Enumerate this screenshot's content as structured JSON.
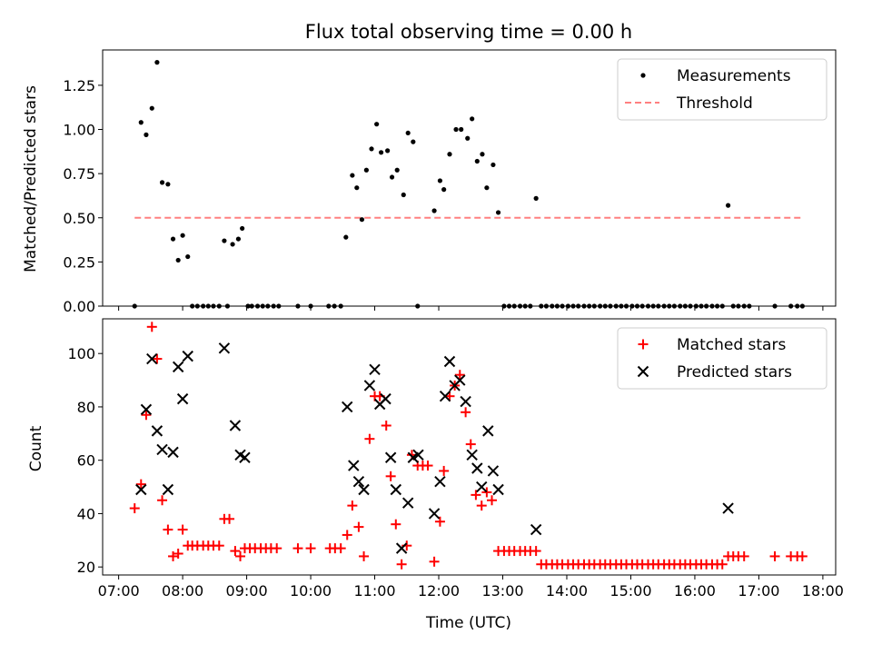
{
  "figure": {
    "title": "Flux total observing time = 0.00 h",
    "xlabel": "Time (UTC)"
  },
  "chart_data": [
    {
      "type": "scatter",
      "panel": "top",
      "ylabel": "Matched/Predicted stars",
      "xlim_hours": [
        6.75,
        18.2
      ],
      "ylim": [
        0,
        1.45
      ],
      "yticks": [
        0.0,
        0.25,
        0.5,
        0.75,
        1.0,
        1.25
      ],
      "ytick_labels": [
        "0.00",
        "0.25",
        "0.50",
        "0.75",
        "1.00",
        "1.25"
      ],
      "legend_position": "upper right",
      "series": [
        {
          "name": "Measurements",
          "color": "#000000",
          "x": [
            7.25,
            7.35,
            7.43,
            7.52,
            7.6,
            7.68,
            7.77,
            7.85,
            7.93,
            8.0,
            8.08,
            8.15,
            8.23,
            8.32,
            8.4,
            8.48,
            8.57,
            8.65,
            8.7,
            8.78,
            8.87,
            8.93,
            9.02,
            9.08,
            9.17,
            9.25,
            9.33,
            9.42,
            9.5,
            9.8,
            10.0,
            10.28,
            10.37,
            10.47,
            10.55,
            10.65,
            10.72,
            10.8,
            10.87,
            10.95,
            11.03,
            11.1,
            11.2,
            11.27,
            11.35,
            11.45,
            11.52,
            11.6,
            11.67,
            11.93,
            12.02,
            12.08,
            12.17,
            12.27,
            12.35,
            12.45,
            12.52,
            12.6,
            12.68,
            12.75,
            12.85,
            12.93,
            13.02,
            13.1,
            13.18,
            13.27,
            13.35,
            13.43,
            13.52,
            13.6,
            13.68,
            13.77,
            13.85,
            13.93,
            14.02,
            14.1,
            14.18,
            14.27,
            14.35,
            14.43,
            14.52,
            14.6,
            14.68,
            14.77,
            14.85,
            14.93,
            15.02,
            15.1,
            15.18,
            15.27,
            15.35,
            15.43,
            15.52,
            15.6,
            15.68,
            15.77,
            15.85,
            15.93,
            16.02,
            16.1,
            16.18,
            16.27,
            16.35,
            16.43,
            16.52,
            16.6,
            16.68,
            16.77,
            16.85,
            17.25,
            17.5,
            17.6,
            17.68
          ],
          "y": [
            0.0,
            1.04,
            0.97,
            1.12,
            1.38,
            0.7,
            0.69,
            0.38,
            0.26,
            0.4,
            0.28,
            0.0,
            0.0,
            0.0,
            0.0,
            0.0,
            0.0,
            0.37,
            0.0,
            0.35,
            0.38,
            0.44,
            0.0,
            0.0,
            0.0,
            0.0,
            0.0,
            0.0,
            0.0,
            0.0,
            0.0,
            0.0,
            0.0,
            0.0,
            0.39,
            0.74,
            0.67,
            0.49,
            0.77,
            0.89,
            1.03,
            0.87,
            0.88,
            0.73,
            0.77,
            0.63,
            0.98,
            0.93,
            0.0,
            0.54,
            0.71,
            0.66,
            0.86,
            1.0,
            1.0,
            0.95,
            1.06,
            0.82,
            0.86,
            0.67,
            0.8,
            0.53,
            0.0,
            0.0,
            0.0,
            0.0,
            0.0,
            0.0,
            0.61,
            0.0,
            0.0,
            0.0,
            0.0,
            0.0,
            0.0,
            0.0,
            0.0,
            0.0,
            0.0,
            0.0,
            0.0,
            0.0,
            0.0,
            0.0,
            0.0,
            0.0,
            0.0,
            0.0,
            0.0,
            0.0,
            0.0,
            0.0,
            0.0,
            0.0,
            0.0,
            0.0,
            0.0,
            0.0,
            0.0,
            0.0,
            0.0,
            0.0,
            0.0,
            0.0,
            0.57,
            0.0,
            0.0,
            0.0,
            0.0,
            0.0,
            0.0,
            0.0,
            0.0
          ]
        },
        {
          "name": "Threshold",
          "style": "dashed",
          "color": "#ff8080",
          "x": [
            7.25,
            17.68
          ],
          "y": [
            0.5,
            0.5
          ]
        }
      ]
    },
    {
      "type": "scatter",
      "panel": "bottom",
      "ylabel": "Count",
      "xlabel": "Time (UTC)",
      "xlim_hours": [
        6.75,
        18.2
      ],
      "ylim": [
        17,
        113
      ],
      "yticks": [
        20,
        40,
        60,
        80,
        100
      ],
      "xticks_hours": [
        7,
        8,
        9,
        10,
        11,
        12,
        13,
        14,
        15,
        16,
        17,
        18
      ],
      "xtick_labels": [
        "07:00",
        "08:00",
        "09:00",
        "10:00",
        "11:00",
        "12:00",
        "13:00",
        "14:00",
        "15:00",
        "16:00",
        "17:00",
        "18:00"
      ],
      "legend_position": "upper right",
      "series": [
        {
          "name": "Matched stars",
          "marker": "plus",
          "color": "#ff0000",
          "x": [
            7.25,
            7.35,
            7.43,
            7.52,
            7.6,
            7.68,
            7.77,
            7.85,
            7.93,
            8.0,
            8.08,
            8.15,
            8.23,
            8.32,
            8.4,
            8.48,
            8.57,
            8.65,
            8.73,
            8.82,
            8.9,
            8.97,
            9.05,
            9.13,
            9.22,
            9.3,
            9.38,
            9.47,
            9.8,
            10.0,
            10.3,
            10.38,
            10.47,
            10.57,
            10.65,
            10.75,
            10.83,
            10.92,
            11.0,
            11.08,
            11.18,
            11.25,
            11.33,
            11.42,
            11.5,
            11.58,
            11.67,
            11.75,
            11.83,
            11.93,
            12.02,
            12.08,
            12.17,
            12.25,
            12.33,
            12.42,
            12.5,
            12.58,
            12.67,
            12.75,
            12.83,
            12.93,
            13.02,
            13.1,
            13.18,
            13.27,
            13.35,
            13.43,
            13.52,
            13.6,
            13.68,
            13.77,
            13.85,
            13.93,
            14.02,
            14.1,
            14.18,
            14.27,
            14.35,
            14.43,
            14.52,
            14.6,
            14.68,
            14.77,
            14.85,
            14.93,
            15.02,
            15.1,
            15.18,
            15.27,
            15.35,
            15.43,
            15.52,
            15.6,
            15.68,
            15.77,
            15.85,
            15.93,
            16.02,
            16.1,
            16.18,
            16.27,
            16.35,
            16.43,
            16.52,
            16.6,
            16.68,
            16.77,
            17.25,
            17.5,
            17.6,
            17.68
          ],
          "y": [
            42,
            51,
            77,
            110,
            98,
            45,
            34,
            24,
            25,
            34,
            28,
            28,
            28,
            28,
            28,
            28,
            28,
            38,
            38,
            26,
            24,
            27,
            27,
            27,
            27,
            27,
            27,
            27,
            27,
            27,
            27,
            27,
            27,
            32,
            43,
            35,
            24,
            68,
            84,
            84,
            73,
            54,
            36,
            21,
            28,
            62,
            58,
            58,
            58,
            22,
            37,
            56,
            84,
            88,
            92,
            78,
            66,
            47,
            43,
            48,
            45,
            26,
            26,
            26,
            26,
            26,
            26,
            26,
            26,
            21,
            21,
            21,
            21,
            21,
            21,
            21,
            21,
            21,
            21,
            21,
            21,
            21,
            21,
            21,
            21,
            21,
            21,
            21,
            21,
            21,
            21,
            21,
            21,
            21,
            21,
            21,
            21,
            21,
            21,
            21,
            21,
            21,
            21,
            21,
            24,
            24,
            24,
            24,
            24,
            24,
            24,
            24
          ]
        },
        {
          "name": "Predicted stars",
          "marker": "x",
          "color": "#000000",
          "x": [
            7.35,
            7.43,
            7.52,
            7.6,
            7.68,
            7.77,
            7.85,
            7.93,
            8.0,
            8.08,
            8.65,
            8.82,
            8.9,
            8.97,
            10.57,
            10.67,
            10.75,
            10.83,
            10.92,
            11.0,
            11.08,
            11.17,
            11.25,
            11.33,
            11.42,
            11.52,
            11.6,
            11.68,
            11.93,
            12.02,
            12.1,
            12.17,
            12.25,
            12.33,
            12.42,
            12.52,
            12.6,
            12.67,
            12.77,
            12.85,
            12.93,
            13.52,
            16.52
          ],
          "y": [
            49,
            79,
            98,
            71,
            64,
            49,
            63,
            95,
            83,
            99,
            102,
            73,
            62,
            61,
            80,
            58,
            52,
            49,
            88,
            94,
            81,
            83,
            61,
            49,
            27,
            44,
            61,
            62,
            40,
            52,
            84,
            97,
            88,
            90,
            82,
            62,
            57,
            50,
            71,
            56,
            49,
            34,
            42
          ]
        }
      ]
    }
  ]
}
